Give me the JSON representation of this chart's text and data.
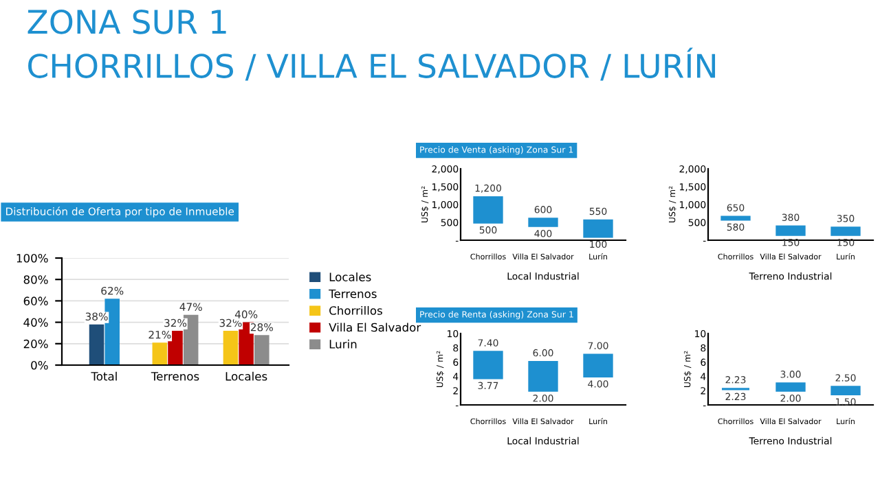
{
  "chart_data": [
    {
      "type": "other",
      "title": "ZONA SUR 1",
      "subtitle": "CHORRILLOS / VILLA EL SALVADOR / LURÍN"
    },
    {
      "type": "bar",
      "title": "Distribución de Oferta por tipo de Inmueble",
      "categories": [
        "Total",
        "Terrenos",
        "Locales"
      ],
      "series": [
        {
          "name": "Locales",
          "color": "#1f4e79",
          "values": [
            38,
            null,
            null
          ],
          "value_labels": [
            "38%",
            null,
            null
          ]
        },
        {
          "name": "Terrenos",
          "color": "#1e90d0",
          "values": [
            62,
            null,
            null
          ],
          "value_labels": [
            "62%",
            null,
            null
          ]
        },
        {
          "name": "Chorrillos",
          "color": "#f5c518",
          "values": [
            null,
            21,
            32
          ],
          "value_labels": [
            null,
            "21%",
            "32%"
          ]
        },
        {
          "name": "Villa El Salvador",
          "color": "#c00000",
          "values": [
            null,
            32,
            40
          ],
          "value_labels": [
            null,
            "32%",
            "40%"
          ]
        },
        {
          "name": "Lurin",
          "color": "#8c8c8c",
          "values": [
            null,
            47,
            28
          ],
          "value_labels": [
            null,
            "47%",
            "28%"
          ]
        }
      ],
      "ylim": [
        0,
        100
      ],
      "yticks": [
        {
          "value": 0,
          "label": "0%"
        },
        {
          "value": 20,
          "label": "20%"
        },
        {
          "value": 40,
          "label": "40%"
        },
        {
          "value": 60,
          "label": "60%"
        },
        {
          "value": 80,
          "label": "80%"
        },
        {
          "value": 100,
          "label": "100%"
        }
      ],
      "grid": "y",
      "legend": "right"
    },
    {
      "type": "bar",
      "title": "Precio de Venta (asking) Zona Sur 1",
      "categories": [
        "Chorrillos",
        "Villa El Salvador",
        "Lurín"
      ],
      "base": [
        500,
        400,
        100
      ],
      "values": [
        700,
        200,
        450
      ],
      "color": "#1e90d0",
      "ylim": [
        0,
        2000
      ],
      "yticks": [
        {
          "value": 0,
          "label": "-"
        },
        {
          "value": 500,
          "label": "500"
        },
        {
          "value": 1000,
          "label": "1,000"
        },
        {
          "value": 1500,
          "label": "1,500"
        },
        {
          "value": 2000,
          "label": "2,000"
        }
      ],
      "ylabel": "US$ / m²",
      "xlabel": "Local Industrial",
      "annotations": [
        {
          "text": "1,200",
          "x": "Chorrillos",
          "y": 1200
        },
        {
          "text": "500",
          "x": "Chorrillos",
          "y": 500
        },
        {
          "text": "600",
          "x": "Villa El Salvador",
          "y": 600
        },
        {
          "text": "400",
          "x": "Villa El Salvador",
          "y": 400
        },
        {
          "text": "550",
          "x": "Lurín",
          "y": 550
        },
        {
          "text": "100",
          "x": "Lurín",
          "y": 100
        }
      ]
    },
    {
      "type": "bar",
      "categories": [
        "Chorrillos",
        "Villa El Salvador",
        "Lurín"
      ],
      "base": [
        580,
        150,
        150
      ],
      "values": [
        70,
        230,
        200
      ],
      "color": "#1e90d0",
      "ylim": [
        0,
        2000
      ],
      "yticks": [
        {
          "value": 0,
          "label": "-"
        },
        {
          "value": 500,
          "label": "500"
        },
        {
          "value": 1000,
          "label": "1,000"
        },
        {
          "value": 1500,
          "label": "1,500"
        },
        {
          "value": 2000,
          "label": "2,000"
        }
      ],
      "ylabel": "US$ / m²",
      "xlabel": "Terreno Industrial",
      "annotations": [
        {
          "text": "650",
          "x": "Chorrillos",
          "y": 650
        },
        {
          "text": "580",
          "x": "Chorrillos",
          "y": 580
        },
        {
          "text": "380",
          "x": "Villa El Salvador",
          "y": 380
        },
        {
          "text": "150",
          "x": "Villa El Salvador",
          "y": 150
        },
        {
          "text": "350",
          "x": "Lurín",
          "y": 350
        },
        {
          "text": "150",
          "x": "Lurín",
          "y": 150
        }
      ]
    },
    {
      "type": "bar",
      "title": "Precio de Renta (asking) Zona Sur 1",
      "categories": [
        "Chorrillos",
        "Villa El Salvador",
        "Lurín"
      ],
      "base": [
        3.77,
        2.0,
        4.0
      ],
      "values": [
        3.63,
        4.0,
        3.0
      ],
      "color": "#1e90d0",
      "ylim": [
        0,
        10
      ],
      "yticks": [
        {
          "value": 0,
          "label": "-"
        },
        2,
        4,
        6,
        8,
        10
      ],
      "ylabel": "US$ / m²",
      "xlabel": "Local Industrial",
      "annotations": [
        {
          "text": "7.40",
          "x": "Chorrillos",
          "y": 7.4
        },
        {
          "text": "3.77",
          "x": "Chorrillos",
          "y": 3.77
        },
        {
          "text": "6.00",
          "x": "Villa El Salvador",
          "y": 6.0
        },
        {
          "text": "2.00",
          "x": "Villa El Salvador",
          "y": 2.0
        },
        {
          "text": "7.00",
          "x": "Lurín",
          "y": 7.0
        },
        {
          "text": "4.00",
          "x": "Lurín",
          "y": 4.0
        }
      ]
    },
    {
      "type": "bar",
      "categories": [
        "Chorrillos",
        "Villa El Salvador",
        "Lurín"
      ],
      "base": [
        2.23,
        2.0,
        1.5
      ],
      "values": [
        0,
        1.0,
        1.0
      ],
      "color": "#1e90d0",
      "ylim": [
        0,
        10
      ],
      "yticks": [
        {
          "value": 0,
          "label": "-"
        },
        2,
        4,
        6,
        8,
        10
      ],
      "ylabel": "US$ / m²",
      "xlabel": "Terreno Industrial",
      "annotations": [
        {
          "text": "2.23",
          "x": "Chorrillos",
          "y": 2.23
        },
        {
          "text": "2.23",
          "x": "Chorrillos",
          "y": 2.23
        },
        {
          "text": "3.00",
          "x": "Villa El Salvador",
          "y": 3.0
        },
        {
          "text": "2.00",
          "x": "Villa El Salvador",
          "y": 2.0
        },
        {
          "text": "2.50",
          "x": "Lurín",
          "y": 2.5
        },
        {
          "text": "1.50",
          "x": "Lurín",
          "y": 1.5
        }
      ]
    }
  ]
}
